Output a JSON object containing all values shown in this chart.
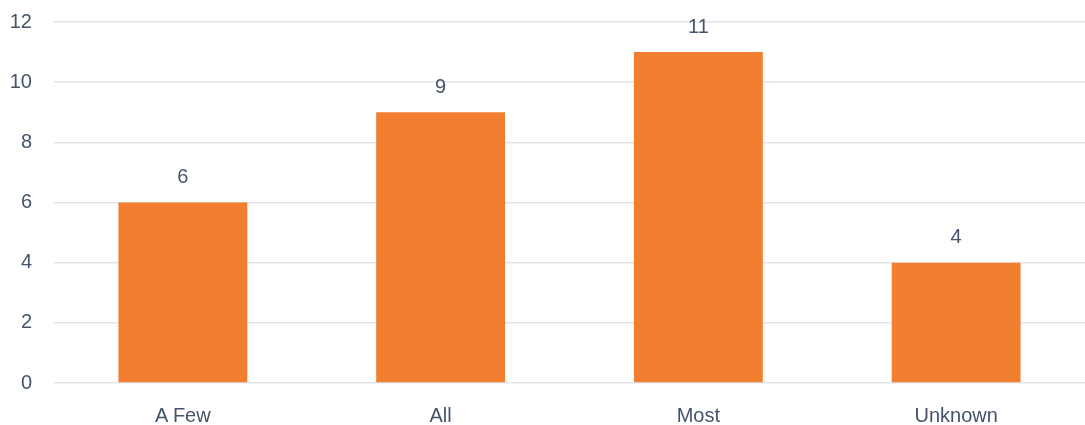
{
  "chart_data": {
    "type": "bar",
    "categories": [
      "A Few",
      "All",
      "Most",
      "Unknown"
    ],
    "values": [
      6,
      9,
      11,
      4
    ],
    "color": "#f27f30",
    "ylim": [
      0,
      12
    ],
    "yticks": [
      0,
      2,
      4,
      6,
      8,
      10,
      12
    ],
    "grid": "y",
    "data_labels": true
  }
}
